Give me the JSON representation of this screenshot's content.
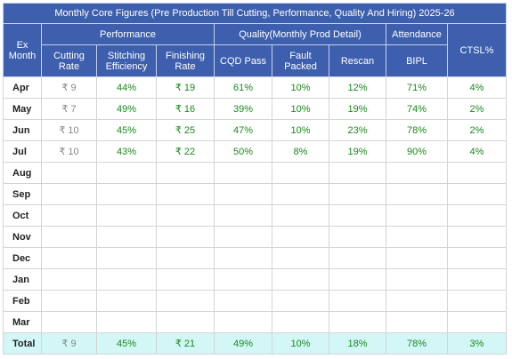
{
  "title": "Monthly Core Figures (Pre Production Till Cutting, Performance, Quality And Hiring) 2025-26",
  "first_header": "Ex Month",
  "groups": [
    {
      "label": "Performance",
      "span": 3
    },
    {
      "label": "Quality(Monthly Prod Detail)",
      "span": 3
    },
    {
      "label": "Attendance",
      "span": 1
    }
  ],
  "last_header": "CTSL%",
  "columns": [
    "Cutting Rate",
    "Stitching Efficiency",
    "Finishing Rate",
    "CQD Pass",
    "Fault Packed",
    "Rescan",
    "BIPL"
  ],
  "rows": [
    {
      "month": "Apr",
      "values": [
        "₹ 9",
        "44%",
        "₹ 19",
        "61%",
        "10%",
        "12%",
        "71%",
        "4%"
      ]
    },
    {
      "month": "May",
      "values": [
        "₹ 7",
        "49%",
        "₹ 16",
        "39%",
        "10%",
        "19%",
        "74%",
        "2%"
      ]
    },
    {
      "month": "Jun",
      "values": [
        "₹ 10",
        "45%",
        "₹ 25",
        "47%",
        "10%",
        "23%",
        "78%",
        "2%"
      ]
    },
    {
      "month": "Jul",
      "values": [
        "₹ 10",
        "43%",
        "₹ 22",
        "50%",
        "8%",
        "19%",
        "90%",
        "4%"
      ]
    },
    {
      "month": "Aug"
    },
    {
      "month": "Sep"
    },
    {
      "month": "Oct"
    },
    {
      "month": "Nov"
    },
    {
      "month": "Dec"
    },
    {
      "month": "Jan"
    },
    {
      "month": "Feb"
    },
    {
      "month": "Mar"
    }
  ],
  "total": {
    "label": "Total",
    "values": [
      "₹ 9",
      "45%",
      "₹ 21",
      "49%",
      "10%",
      "18%",
      "78%",
      "3%"
    ]
  }
}
